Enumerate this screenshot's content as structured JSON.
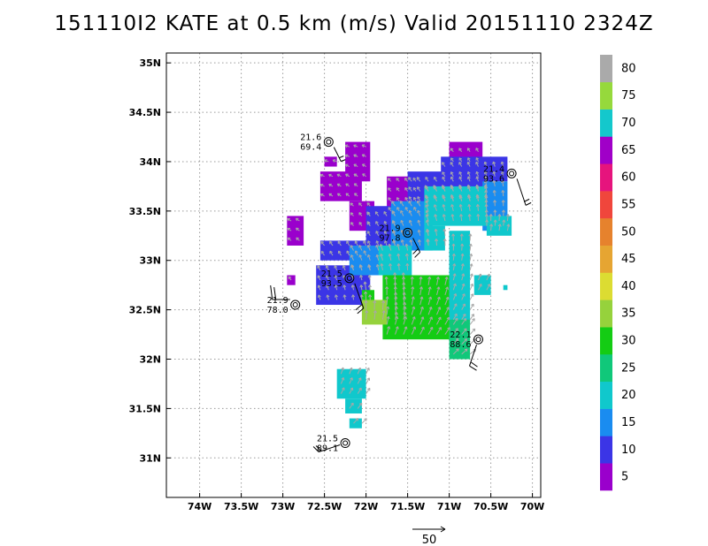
{
  "title": "151110I2 KATE at 0.5 km (m/s) Valid 20151110 2324Z",
  "chart_data": {
    "type": "heatmap",
    "x_ticks": [
      "74W",
      "73.5W",
      "73W",
      "72.5W",
      "72W",
      "71.5W",
      "71W",
      "70.5W",
      "70W"
    ],
    "y_ticks": [
      "35N",
      "34.5N",
      "34N",
      "33.5N",
      "33N",
      "32.5N",
      "32N",
      "31.5N",
      "31N"
    ],
    "xlim": [
      -74.4,
      -69.9
    ],
    "ylim": [
      30.6,
      35.1
    ],
    "grid": true,
    "colorbar": {
      "ticks": [
        "5",
        "10",
        "15",
        "20",
        "25",
        "30",
        "35",
        "40",
        "45",
        "50",
        "55",
        "60",
        "65",
        "70",
        "75",
        "80"
      ],
      "colors": [
        "#9a00cc",
        "#3b35e6",
        "#1a8cf0",
        "#10c8cc",
        "#10c87a",
        "#14cc14",
        "#96d23c",
        "#dcdc32",
        "#e6a532",
        "#e6822d",
        "#f0463c",
        "#e6147d",
        "#a000c8",
        "#14c8cc",
        "#96d93c",
        "#aaaaaa"
      ]
    },
    "observations": [
      {
        "lon": -72.45,
        "lat": 34.2,
        "label1": "21.6",
        "label2": "69.4"
      },
      {
        "lon": -70.25,
        "lat": 33.88,
        "label1": "21.4",
        "label2": "93.6"
      },
      {
        "lon": -71.5,
        "lat": 33.28,
        "label1": "21.9",
        "label2": "97.8"
      },
      {
        "lon": -72.2,
        "lat": 32.82,
        "label1": "21.5",
        "label2": "93.5"
      },
      {
        "lon": -72.85,
        "lat": 32.55,
        "label1": "21.9",
        "label2": "78.0"
      },
      {
        "lon": -70.65,
        "lat": 32.2,
        "label1": "22.1",
        "label2": "88.6"
      },
      {
        "lon": -72.25,
        "lat": 31.15,
        "label1": "21.5",
        "label2": "89.1"
      }
    ],
    "wind_regions": [
      {
        "lon": [
          -72.95,
          -72.75
        ],
        "lat": [
          33.15,
          33.45
        ],
        "speed": 5
      },
      {
        "lon": [
          -72.55,
          -72.05
        ],
        "lat": [
          33.6,
          33.9
        ],
        "speed": 5
      },
      {
        "lon": [
          -72.25,
          -71.95
        ],
        "lat": [
          33.8,
          34.2
        ],
        "speed": 5
      },
      {
        "lon": [
          -72.5,
          -72.35
        ],
        "lat": [
          33.95,
          34.05
        ],
        "speed": 5
      },
      {
        "lon": [
          -72.2,
          -71.9
        ],
        "lat": [
          33.3,
          33.6
        ],
        "speed": 5
      },
      {
        "lon": [
          -71.75,
          -71.35
        ],
        "lat": [
          33.45,
          33.85
        ],
        "speed": 5
      },
      {
        "lon": [
          -71.0,
          -70.6
        ],
        "lat": [
          33.95,
          34.2
        ],
        "speed": 5
      },
      {
        "lon": [
          -72.95,
          -72.85
        ],
        "lat": [
          32.75,
          32.85
        ],
        "speed": 5
      },
      {
        "lon": [
          -72.55,
          -72.0
        ],
        "lat": [
          33.0,
          33.2
        ],
        "speed": 10
      },
      {
        "lon": [
          -72.6,
          -71.95
        ],
        "lat": [
          32.55,
          32.95
        ],
        "speed": 10
      },
      {
        "lon": [
          -72.0,
          -71.6
        ],
        "lat": [
          33.1,
          33.55
        ],
        "speed": 10
      },
      {
        "lon": [
          -71.5,
          -70.5
        ],
        "lat": [
          33.55,
          33.9
        ],
        "speed": 10
      },
      {
        "lon": [
          -71.1,
          -70.3
        ],
        "lat": [
          33.8,
          34.05
        ],
        "speed": 10
      },
      {
        "lon": [
          -70.6,
          -70.3
        ],
        "lat": [
          33.3,
          33.8
        ],
        "speed": 15
      },
      {
        "lon": [
          -71.7,
          -71.2
        ],
        "lat": [
          33.1,
          33.6
        ],
        "speed": 15
      },
      {
        "lon": [
          -71.3,
          -70.55
        ],
        "lat": [
          33.35,
          33.75
        ],
        "speed": 20
      },
      {
        "lon": [
          -70.55,
          -70.25
        ],
        "lat": [
          33.25,
          33.45
        ],
        "speed": 20
      },
      {
        "lon": [
          -72.2,
          -71.8
        ],
        "lat": [
          32.85,
          33.15
        ],
        "speed": 15
      },
      {
        "lon": [
          -71.85,
          -71.45
        ],
        "lat": [
          32.85,
          33.15
        ],
        "speed": 20
      },
      {
        "lon": [
          -71.3,
          -71.05
        ],
        "lat": [
          33.1,
          33.35
        ],
        "speed": 20
      },
      {
        "lon": [
          -71.0,
          -70.75
        ],
        "lat": [
          32.35,
          33.3
        ],
        "speed": 20
      },
      {
        "lon": [
          -70.7,
          -70.5
        ],
        "lat": [
          32.65,
          32.85
        ],
        "speed": 20
      },
      {
        "lon": [
          -70.35,
          -70.3
        ],
        "lat": [
          32.7,
          32.75
        ],
        "speed": 20
      },
      {
        "lon": [
          -71.7,
          -71.5
        ],
        "lat": [
          32.35,
          32.85
        ],
        "speed": 25
      },
      {
        "lon": [
          -71.0,
          -70.75
        ],
        "lat": [
          32.0,
          32.4
        ],
        "speed": 25
      },
      {
        "lon": [
          -71.8,
          -71.0
        ],
        "lat": [
          32.2,
          32.85
        ],
        "speed": 30
      },
      {
        "lon": [
          -72.05,
          -71.9
        ],
        "lat": [
          32.55,
          32.7
        ],
        "speed": 30
      },
      {
        "lon": [
          -72.05,
          -71.75
        ],
        "lat": [
          32.35,
          32.6
        ],
        "speed": 35
      },
      {
        "lon": [
          -72.35,
          -72.0
        ],
        "lat": [
          31.6,
          31.9
        ],
        "speed": 20
      },
      {
        "lon": [
          -72.25,
          -72.05
        ],
        "lat": [
          31.45,
          31.6
        ],
        "speed": 20
      },
      {
        "lon": [
          -72.2,
          -72.05
        ],
        "lat": [
          31.3,
          31.4
        ],
        "speed": 20
      }
    ]
  },
  "reference_vector": {
    "label": "50"
  }
}
